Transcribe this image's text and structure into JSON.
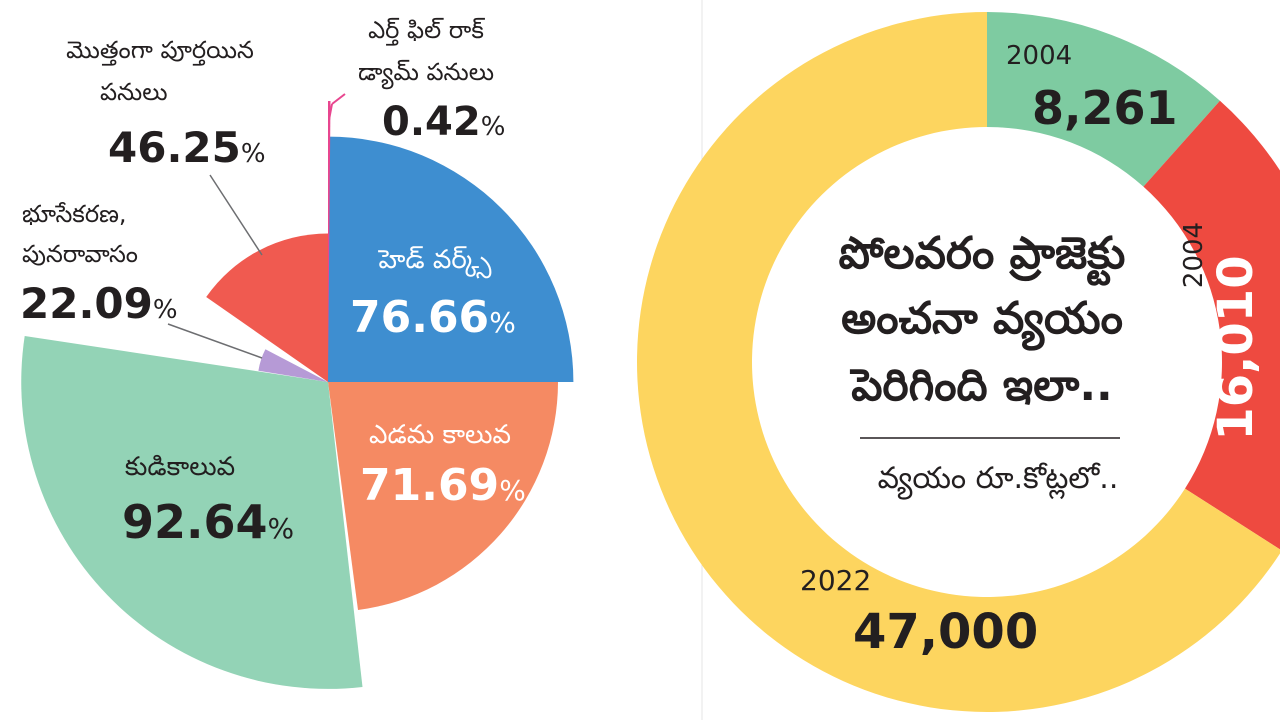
{
  "pie_chart": {
    "type": "pie",
    "unit_symbol": "%",
    "slices": [
      {
        "label": "హెడ్ వర్క్స్",
        "value": 76.66,
        "color": "#3e8ed0"
      },
      {
        "label": "ఎడమ కాలువ",
        "value": 71.69,
        "color": "#f58a63"
      },
      {
        "label": "కుడికాలువ",
        "value": 92.64,
        "color": "#93d3b6"
      },
      {
        "label": "భూసేకరణ, పునరావాసం",
        "label_lines": [
          "భూసేకరణ,",
          "పునరావాసం"
        ],
        "value": 22.09,
        "color": "#b69ad6"
      },
      {
        "label": "మొత్తంగా పూర్తయిన పనులు",
        "label_lines": [
          "మొత్తంగా పూర్తయిన",
          "పనులు"
        ],
        "value": 46.25,
        "color": "#f05a50"
      },
      {
        "label": "ఎర్త్ ఫిల్ రాక్ డ్యామ్ పనులు",
        "label_lines": [
          "ఎర్త్ ఫిల్ రాక్",
          "డ్యామ్ పనులు"
        ],
        "value": 0.42,
        "color": "#e8468f"
      }
    ]
  },
  "donut_chart": {
    "type": "pie",
    "variant": "donut",
    "center_title_lines": [
      "పోలవరం ప్రాజెక్టు",
      "అంచనా వ్యయం",
      "పెరిగింది ఇలా.."
    ],
    "center_subtitle": "వ్యయం రూ.కోట్లలో..",
    "segments": [
      {
        "year": "2004",
        "value": 8261,
        "value_label": "8,261",
        "color": "#7ecba1"
      },
      {
        "year": "2004",
        "value": 16010,
        "value_label": "16,010",
        "color": "#ee4a40"
      },
      {
        "year": "2022",
        "value": 47000,
        "value_label": "47,000",
        "color": "#fdd55f"
      }
    ]
  }
}
